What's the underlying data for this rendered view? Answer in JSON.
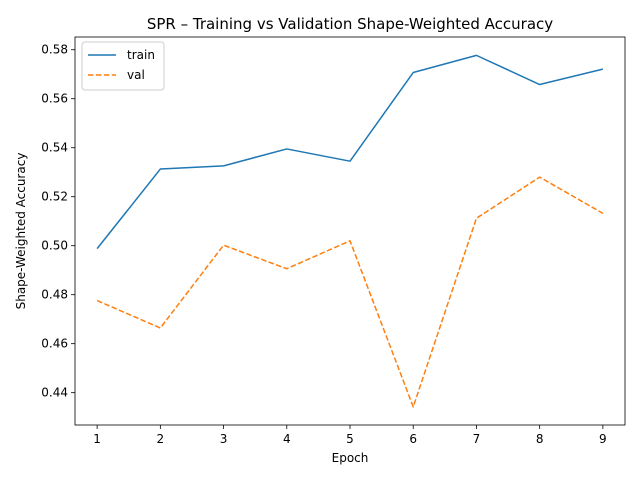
{
  "chart_data": {
    "type": "line",
    "title": "SPR – Training vs Validation Shape-Weighted Accuracy",
    "xlabel": "Epoch",
    "ylabel": "Shape-Weighted Accuracy",
    "x": [
      1,
      2,
      3,
      4,
      5,
      6,
      7,
      8,
      9
    ],
    "xticks": [
      "1",
      "2",
      "3",
      "4",
      "5",
      "6",
      "7",
      "8",
      "9"
    ],
    "yticks": [
      "0.44",
      "0.46",
      "0.48",
      "0.50",
      "0.52",
      "0.54",
      "0.56",
      "0.58"
    ],
    "xlim": [
      0.65,
      9.35
    ],
    "ylim": [
      0.4268,
      0.5852
    ],
    "grid": false,
    "legend_position": "upper left",
    "series": [
      {
        "name": "train",
        "color": "#1f77b4",
        "style": "solid",
        "values": [
          0.4988,
          0.5313,
          0.5326,
          0.5395,
          0.5345,
          0.5707,
          0.5777,
          0.5658,
          0.5721
        ]
      },
      {
        "name": "val",
        "color": "#ff7f0e",
        "style": "dashed",
        "values": [
          0.4776,
          0.4664,
          0.5002,
          0.4906,
          0.502,
          0.4342,
          0.5112,
          0.528,
          0.5132
        ]
      }
    ]
  }
}
